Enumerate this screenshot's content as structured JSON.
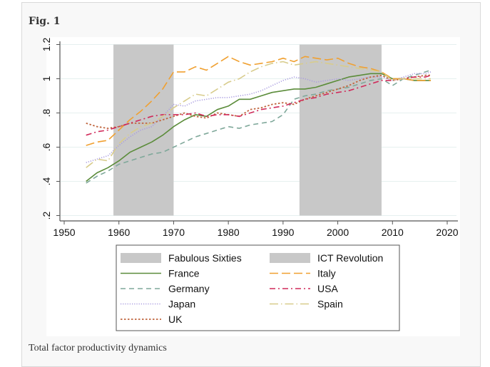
{
  "figure": {
    "label": "Fig. 1",
    "caption": "Total factor productivity dynamics"
  },
  "chart_data": {
    "type": "line",
    "title": "",
    "xlabel": "",
    "ylabel": "",
    "xlim": [
      1950,
      2020
    ],
    "ylim": [
      0.2,
      1.2
    ],
    "xticks": [
      1950,
      1960,
      1970,
      1980,
      1990,
      2000,
      2010,
      2020
    ],
    "xtick_labels": [
      "1950",
      "1960",
      "1970",
      "1980",
      "1990",
      "2000",
      "2010",
      "2020"
    ],
    "yticks": [
      0.2,
      0.4,
      0.6,
      0.8,
      1.0,
      1.2
    ],
    "ytick_labels": [
      ".2",
      ".4",
      ".6",
      ".8",
      "1",
      "1.2"
    ],
    "grid": true,
    "legend_position": "bottom",
    "shaded_periods": [
      {
        "name": "Fabulous Sixties",
        "start": 1959,
        "end": 1970,
        "color": "#c8c8c8"
      },
      {
        "name": "ICT Revolution",
        "start": 1993,
        "end": 2008,
        "color": "#c8c8c8"
      }
    ],
    "x": [
      1954,
      1956,
      1958,
      1960,
      1962,
      1964,
      1966,
      1968,
      1970,
      1972,
      1974,
      1976,
      1978,
      1980,
      1982,
      1984,
      1986,
      1988,
      1990,
      1992,
      1994,
      1996,
      1998,
      2000,
      2002,
      2004,
      2006,
      2008,
      2010,
      2012,
      2014,
      2016,
      2017
    ],
    "series": [
      {
        "name": "France",
        "color": "#5b8c3a",
        "dash": "solid",
        "values": [
          0.4,
          0.45,
          0.48,
          0.52,
          0.57,
          0.6,
          0.63,
          0.67,
          0.72,
          0.76,
          0.79,
          0.78,
          0.82,
          0.84,
          0.88,
          0.88,
          0.9,
          0.92,
          0.93,
          0.94,
          0.94,
          0.95,
          0.97,
          0.99,
          1.01,
          1.02,
          1.03,
          1.03,
          1.0,
          1.0,
          0.99,
          0.99,
          0.99
        ]
      },
      {
        "name": "Germany",
        "color": "#7fa89a",
        "dash": "dashed",
        "values": [
          0.39,
          0.43,
          0.46,
          0.5,
          0.52,
          0.54,
          0.56,
          0.57,
          0.6,
          0.63,
          0.66,
          0.68,
          0.7,
          0.72,
          0.71,
          0.73,
          0.74,
          0.75,
          0.79,
          0.88,
          0.9,
          0.91,
          0.93,
          0.94,
          0.95,
          0.97,
          0.99,
          1.0,
          0.96,
          1.0,
          1.02,
          1.04,
          1.05
        ]
      },
      {
        "name": "Japan",
        "color": "#a99ce0",
        "dash": "dotted",
        "values": [
          0.51,
          0.53,
          0.55,
          0.61,
          0.66,
          0.7,
          0.72,
          0.78,
          0.85,
          0.84,
          0.87,
          0.88,
          0.89,
          0.89,
          0.9,
          0.91,
          0.93,
          0.96,
          0.99,
          1.01,
          1.0,
          0.98,
          0.99,
          1.0,
          0.99,
          1.0,
          1.01,
          1.01,
          0.99,
          1.01,
          1.03,
          1.03,
          1.04
        ]
      },
      {
        "name": "UK",
        "color": "#c0663f",
        "dash": "short-dotted",
        "values": [
          0.74,
          0.72,
          0.71,
          0.72,
          0.74,
          0.74,
          0.74,
          0.76,
          0.78,
          0.8,
          0.78,
          0.77,
          0.8,
          0.79,
          0.78,
          0.82,
          0.83,
          0.85,
          0.86,
          0.85,
          0.88,
          0.9,
          0.92,
          0.94,
          0.96,
          0.99,
          1.01,
          1.02,
          0.99,
          1.0,
          1.01,
          1.02,
          1.02
        ]
      },
      {
        "name": "Italy",
        "color": "#f0a030",
        "dash": "long-dashed",
        "values": [
          0.61,
          0.63,
          0.64,
          0.7,
          0.76,
          0.81,
          0.87,
          0.94,
          1.04,
          1.04,
          1.07,
          1.05,
          1.09,
          1.13,
          1.1,
          1.08,
          1.09,
          1.1,
          1.12,
          1.1,
          1.13,
          1.12,
          1.11,
          1.12,
          1.09,
          1.07,
          1.06,
          1.04,
          1.0,
          1.0,
          0.99,
          0.99,
          0.99
        ]
      },
      {
        "name": "USA",
        "color": "#d02a5a",
        "dash": "dash-dot",
        "values": [
          0.67,
          0.69,
          0.7,
          0.72,
          0.74,
          0.76,
          0.78,
          0.79,
          0.79,
          0.79,
          0.8,
          0.78,
          0.79,
          0.79,
          0.78,
          0.8,
          0.82,
          0.83,
          0.84,
          0.86,
          0.88,
          0.89,
          0.91,
          0.92,
          0.93,
          0.95,
          0.97,
          0.99,
          0.99,
          1.0,
          1.01,
          1.01,
          1.02
        ]
      },
      {
        "name": "Spain",
        "color": "#d8cc8c",
        "dash": "long-dash-dot",
        "values": [
          0.48,
          0.53,
          0.52,
          0.62,
          0.68,
          0.72,
          0.74,
          0.78,
          0.83,
          0.87,
          0.91,
          0.9,
          0.94,
          0.98,
          1.0,
          1.04,
          1.07,
          1.09,
          1.1,
          1.08,
          1.09,
          1.1,
          1.09,
          1.08,
          1.07,
          1.06,
          1.05,
          1.04,
          0.99,
          1.0,
          1.0,
          1.0,
          1.0
        ]
      }
    ],
    "legend": [
      {
        "label": "Fabulous Sixties",
        "kind": "area"
      },
      {
        "label": "ICT Revolution",
        "kind": "area"
      },
      {
        "label": "France",
        "kind": "line"
      },
      {
        "label": "Italy",
        "kind": "line"
      },
      {
        "label": "Germany",
        "kind": "line"
      },
      {
        "label": "USA",
        "kind": "line"
      },
      {
        "label": "Japan",
        "kind": "line"
      },
      {
        "label": "Spain",
        "kind": "line"
      },
      {
        "label": "UK",
        "kind": "line"
      }
    ]
  }
}
